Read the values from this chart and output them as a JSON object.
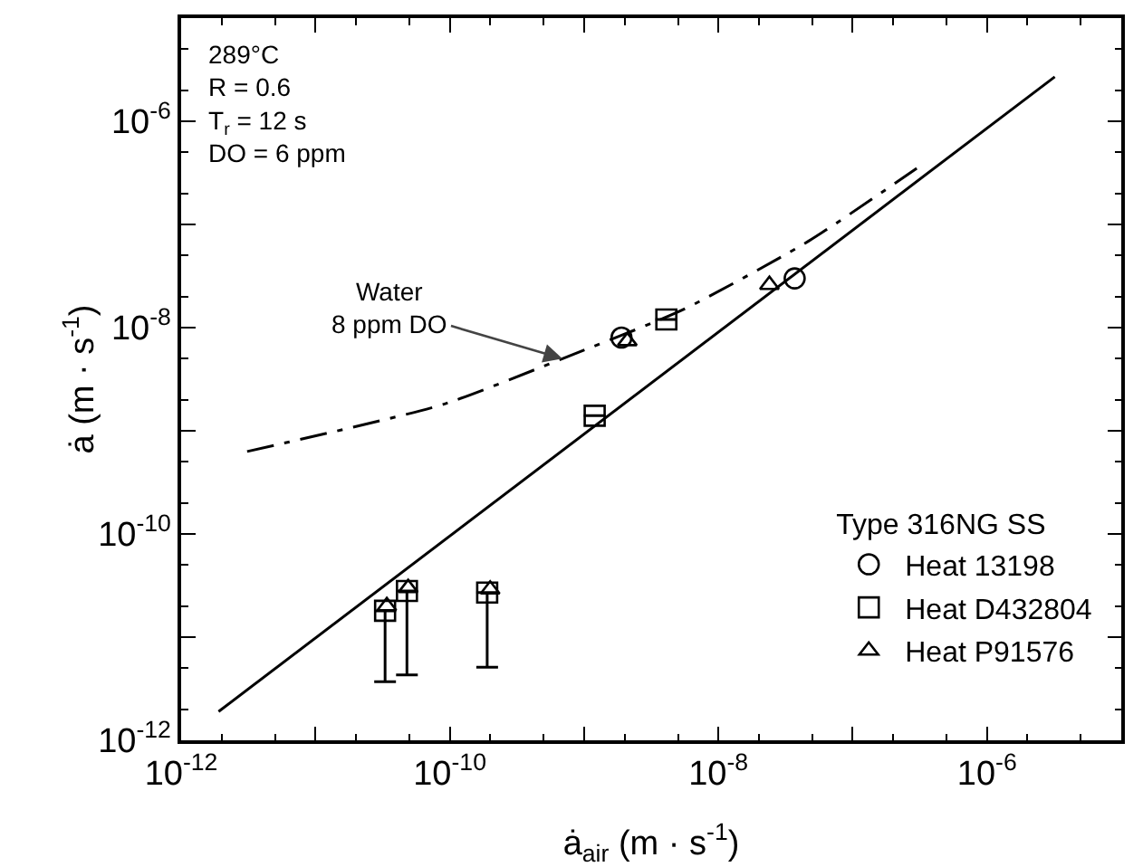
{
  "chart_data": {
    "type": "scatter",
    "xlabel": "ȧ$_{air}$ (m · s$^{-1}$)",
    "ylabel": "ȧ (m · s$^{-1}$)",
    "legend_title": "Type 316NG SS",
    "legend": "bottom right",
    "log": "xy",
    "grid": false,
    "xlim": [
      1e-12,
      1e-05
    ],
    "ylim": [
      1e-12,
      1e-05
    ],
    "xticks": [
      {
        "value": 1e-12,
        "label": "10$^{-12}$"
      },
      {
        "value": 1e-11,
        "label": null
      },
      {
        "value": 1e-10,
        "label": "10$^{-10}$"
      },
      {
        "value": 1e-09,
        "label": null
      },
      {
        "value": 1e-08,
        "label": "10$^{-8}$"
      },
      {
        "value": 1e-07,
        "label": null
      },
      {
        "value": 1e-06,
        "label": "10$^{-6}$"
      },
      {
        "value": 1e-05,
        "label": null
      }
    ],
    "yticks": [
      {
        "value": 1e-12,
        "label": "10$^{-12}$"
      },
      {
        "value": 1e-11,
        "label": null
      },
      {
        "value": 1e-10,
        "label": "10$^{-10}$"
      },
      {
        "value": 1e-09,
        "label": null
      },
      {
        "value": 1e-08,
        "label": "10$^{-8}$"
      },
      {
        "value": 1e-07,
        "label": null
      },
      {
        "value": 1e-06,
        "label": "10$^{-6}$"
      },
      {
        "value": 1e-05,
        "label": null
      }
    ],
    "series": [
      {
        "type": "line",
        "color": "#000000",
        "line_style": "solid",
        "x": [
          1.9e-12,
          3.2e-06
        ],
        "values": [
          1.9e-12,
          2.7e-06
        ]
      },
      {
        "type": "line",
        "color": "#000000",
        "line_style": "dashed",
        "x": [
          3.1e-12,
          8.9e-11,
          6.9e-10,
          5.5e-09,
          4.7e-08,
          3e-07
        ],
        "values": [
          6.3e-10,
          1.8e-09,
          5e-09,
          1.5e-08,
          6.9e-08,
          3.5e-07
        ]
      },
      {
        "name": "Heat 13198",
        "color": "#000000",
        "marker": "circle",
        "x": [
          1.9e-09,
          3.7e-08
        ],
        "values": [
          8e-09,
          3e-08
        ]
      },
      {
        "name": "Heat D432804",
        "color": "#000000",
        "marker": "square",
        "x": [
          3.3e-11,
          4.8e-11,
          1.9e-10,
          1.2e-09,
          4.1e-09
        ],
        "values": [
          1.8e-11,
          2.8e-11,
          2.7e-11,
          1.4e-09,
          1.2e-08
        ],
        "errors": [
          [
            3.7e-12,
            1.8e-11
          ],
          [
            4.3e-12,
            2.8e-11
          ],
          [
            5.1e-12,
            2.7e-11
          ],
          null,
          null
        ]
      },
      {
        "name": "Heat P91576",
        "color": "#000000",
        "marker": "triangle",
        "x": [
          3.4e-11,
          4.9e-11,
          2e-10,
          2.1e-09,
          2.4e-08
        ],
        "values": [
          2e-11,
          3e-11,
          2.9e-11,
          7.4e-09,
          2.6e-08
        ]
      }
    ],
    "annotations": [
      "289°C\nR = 0.6\nT$_{r}$ = 12 s\nDO = 6 ppm",
      {
        "text": "Water\n8 ppm DO",
        "x": 6.9e-10,
        "y": 5e-09
      }
    ]
  }
}
